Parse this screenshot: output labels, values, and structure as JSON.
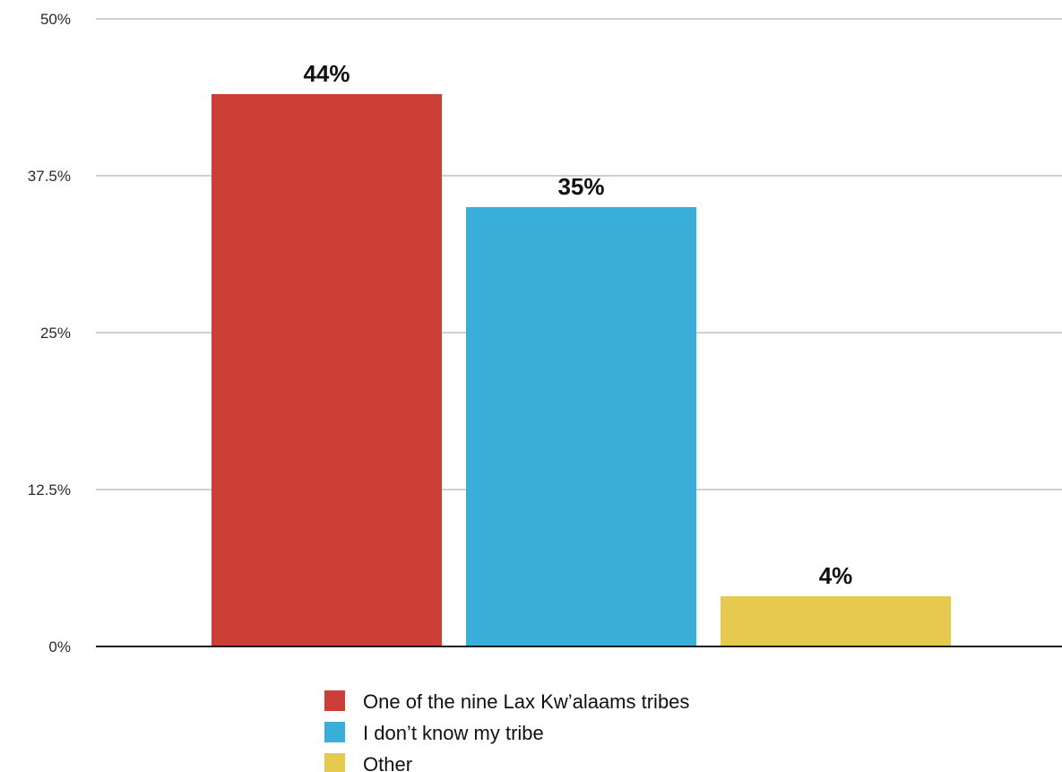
{
  "chart_data": {
    "type": "bar",
    "categories": [
      "One of the nine Lax Kw’alaams tribes",
      "I don’t know my tribe",
      "Other"
    ],
    "values": [
      44,
      35,
      4
    ],
    "value_labels": [
      "44%",
      "35%",
      "4%"
    ],
    "colors": [
      "#cc3f36",
      "#39aed9",
      "#e6c94f"
    ],
    "y_ticks": [
      0,
      12.5,
      25,
      37.5,
      50
    ],
    "y_tick_labels": [
      "0%",
      "12.5%",
      "25%",
      "37.5%",
      "50%"
    ],
    "ylim": [
      0,
      50
    ],
    "grid": true,
    "legend": {
      "placement": "bottom-center",
      "entries": [
        "One of the nine Lax Kw’alaams tribes",
        "I don’t know my tribe",
        "Other"
      ]
    }
  }
}
